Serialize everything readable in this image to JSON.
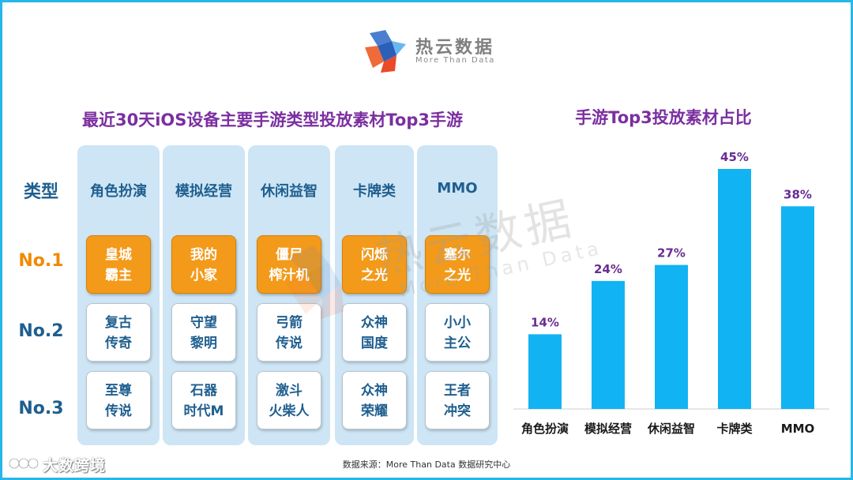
{
  "logo": {
    "name": "热云数据",
    "sub": "More Than Data"
  },
  "watermark": {
    "name": "热云数据",
    "sub": "More Than Data"
  },
  "left_title": "最近30天iOS设备主要手游类型投放素材Top3手游",
  "right_title": "手游Top3投放素材占比",
  "row_labels": {
    "type": "类型",
    "no1": "No.1",
    "no2": "No.2",
    "no3": "No.3"
  },
  "columns": [
    {
      "head": "角色扮演",
      "no1": [
        "皇城",
        "霸主"
      ],
      "no2": [
        "复古",
        "传奇"
      ],
      "no3": [
        "至尊",
        "传说"
      ]
    },
    {
      "head": "模拟经营",
      "no1": [
        "我的",
        "小家"
      ],
      "no2": [
        "守望",
        "黎明"
      ],
      "no3": [
        "石器",
        "时代M"
      ]
    },
    {
      "head": "休闲益智",
      "no1": [
        "僵尸",
        "榨汁机"
      ],
      "no2": [
        "弓箭",
        "传说"
      ],
      "no3": [
        "激斗",
        "火柴人"
      ]
    },
    {
      "head": "卡牌类",
      "no1": [
        "闪烁",
        "之光"
      ],
      "no2": [
        "众神",
        "国度"
      ],
      "no3": [
        "众神",
        "荣耀"
      ]
    },
    {
      "head": "MMO",
      "no1": [
        "塞尔",
        "之光"
      ],
      "no2": [
        "小小",
        "主公"
      ],
      "no3": [
        "王者",
        "冲突"
      ]
    }
  ],
  "chart_data": {
    "type": "bar",
    "title": "手游Top3投放素材占比",
    "categories": [
      "角色扮演",
      "模拟经营",
      "休闲益智",
      "卡牌类",
      "MMO"
    ],
    "values": [
      14,
      24,
      27,
      45,
      38
    ],
    "value_labels": [
      "14%",
      "24%",
      "27%",
      "45%",
      "38%"
    ],
    "ylim": [
      0,
      45
    ],
    "grid": false,
    "xlabel": "",
    "ylabel": "",
    "colors": {
      "bar": "#12b3f3",
      "label": "#6a2c91",
      "axis": "#cccccc"
    }
  },
  "source": "数据来源：More Than Data 数据研究中心",
  "brand": "大数跨境"
}
